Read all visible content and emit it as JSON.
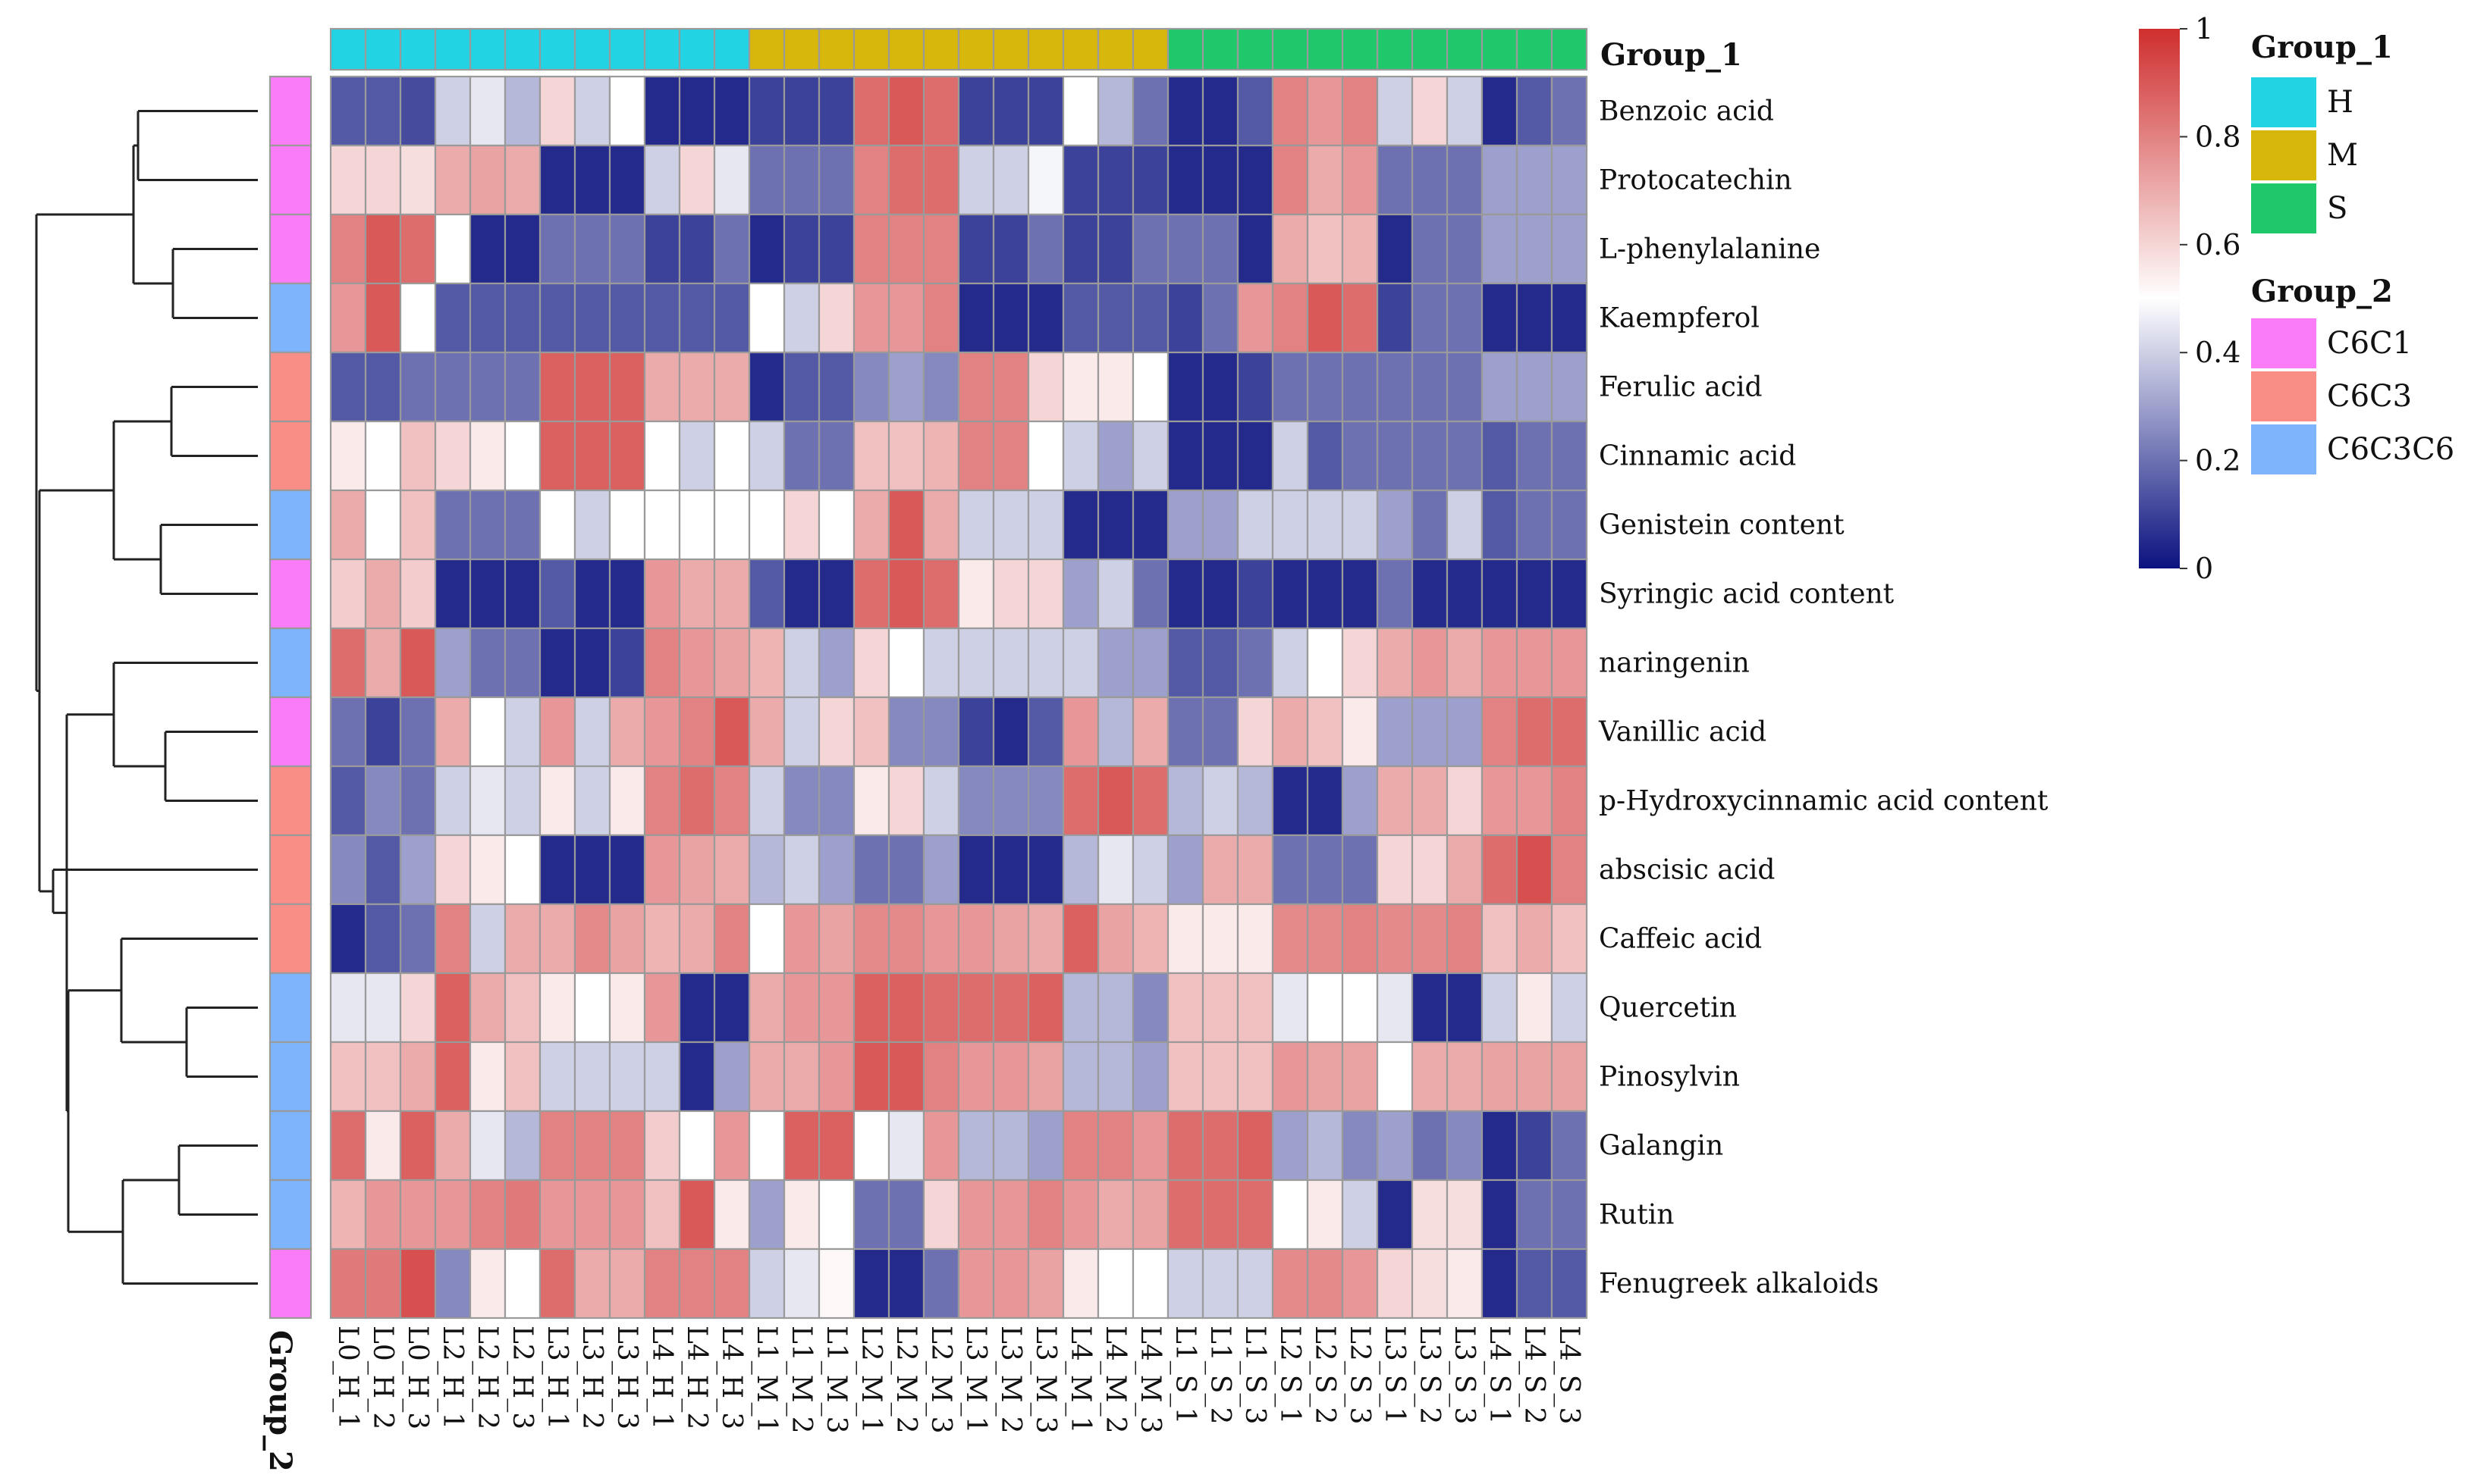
{
  "chart_data": {
    "type": "heatmap",
    "columns": [
      "L0_H_1",
      "L0_H_2",
      "L0_H_3",
      "L2_H_1",
      "L2_H_2",
      "L2_H_3",
      "L3_H_1",
      "L3_H_2",
      "L3_H_3",
      "L4_H_1",
      "L4_H_2",
      "L4_H_3",
      "L1_M_1",
      "L1_M_2",
      "L1_M_3",
      "L2_M_1",
      "L2_M_2",
      "L2_M_3",
      "L3_M_1",
      "L3_M_2",
      "L3_M_3",
      "L4_M_1",
      "L4_M_2",
      "L4_M_3",
      "L1_S_1",
      "L1_S_2",
      "L1_S_3",
      "L2_S_1",
      "L2_S_2",
      "L2_S_3",
      "L3_S_1",
      "L3_S_2",
      "L3_S_3",
      "L4_S_1",
      "L4_S_2",
      "L4_S_3"
    ],
    "rows": [
      "Benzoic acid",
      "Protocatechin",
      "L-phenylalanine",
      "Kaempferol",
      "Ferulic acid",
      "Cinnamic acid",
      "Genistein content",
      "Syringic acid content",
      "naringenin",
      "Vanillic acid",
      "p-Hydroxycinnamic acid content",
      "abscisic acid",
      "Caffeic acid",
      "Quercetin",
      "Pinosylvin",
      "Galangin",
      "Rutin",
      "Fenugreek alkaloids"
    ],
    "column_group_1": [
      "H",
      "H",
      "H",
      "H",
      "H",
      "H",
      "H",
      "H",
      "H",
      "H",
      "H",
      "H",
      "M",
      "M",
      "M",
      "M",
      "M",
      "M",
      "M",
      "M",
      "M",
      "M",
      "M",
      "M",
      "S",
      "S",
      "S",
      "S",
      "S",
      "S",
      "S",
      "S",
      "S",
      "S",
      "S",
      "S"
    ],
    "row_group_2": [
      "C6C1",
      "C6C1",
      "C6C1",
      "C6C3C6",
      "C6C3",
      "C6C3",
      "C6C3C6",
      "C6C1",
      "C6C3C6",
      "C6C1",
      "C6C3",
      "C6C3",
      "C6C3",
      "C6C3C6",
      "C6C3C6",
      "C6C3C6",
      "C6C3C6",
      "C6C1"
    ],
    "values": [
      [
        0.15,
        0.15,
        0.12,
        0.4,
        0.45,
        0.35,
        0.6,
        0.4,
        0.5,
        0.05,
        0.05,
        0.05,
        0.1,
        0.1,
        0.1,
        0.85,
        0.9,
        0.85,
        0.1,
        0.1,
        0.1,
        0.5,
        0.35,
        0.2,
        0.05,
        0.05,
        0.15,
        0.8,
        0.75,
        0.8,
        0.4,
        0.6,
        0.4,
        0.05,
        0.15,
        0.2
      ],
      [
        0.6,
        0.6,
        0.58,
        0.7,
        0.72,
        0.7,
        0.05,
        0.05,
        0.05,
        0.4,
        0.6,
        0.45,
        0.2,
        0.2,
        0.2,
        0.8,
        0.85,
        0.85,
        0.4,
        0.4,
        0.48,
        0.1,
        0.1,
        0.1,
        0.05,
        0.05,
        0.05,
        0.8,
        0.7,
        0.75,
        0.2,
        0.2,
        0.2,
        0.3,
        0.3,
        0.3
      ],
      [
        0.8,
        0.9,
        0.85,
        0.5,
        0.05,
        0.05,
        0.2,
        0.2,
        0.2,
        0.1,
        0.1,
        0.2,
        0.05,
        0.1,
        0.1,
        0.8,
        0.8,
        0.8,
        0.1,
        0.1,
        0.2,
        0.1,
        0.1,
        0.2,
        0.2,
        0.2,
        0.05,
        0.7,
        0.65,
        0.68,
        0.05,
        0.2,
        0.2,
        0.3,
        0.3,
        0.3
      ],
      [
        0.75,
        0.9,
        0.5,
        0.15,
        0.15,
        0.15,
        0.15,
        0.15,
        0.15,
        0.15,
        0.15,
        0.15,
        0.5,
        0.4,
        0.6,
        0.75,
        0.75,
        0.8,
        0.05,
        0.05,
        0.05,
        0.15,
        0.15,
        0.15,
        0.1,
        0.2,
        0.75,
        0.8,
        0.9,
        0.85,
        0.1,
        0.2,
        0.2,
        0.05,
        0.05,
        0.05
      ],
      [
        0.15,
        0.15,
        0.2,
        0.2,
        0.2,
        0.2,
        0.88,
        0.88,
        0.88,
        0.7,
        0.7,
        0.7,
        0.05,
        0.15,
        0.15,
        0.25,
        0.3,
        0.25,
        0.8,
        0.8,
        0.6,
        0.55,
        0.55,
        0.5,
        0.05,
        0.05,
        0.1,
        0.2,
        0.2,
        0.2,
        0.2,
        0.2,
        0.2,
        0.3,
        0.3,
        0.3
      ],
      [
        0.55,
        0.5,
        0.65,
        0.6,
        0.55,
        0.5,
        0.88,
        0.88,
        0.88,
        0.5,
        0.4,
        0.5,
        0.4,
        0.2,
        0.2,
        0.65,
        0.65,
        0.68,
        0.8,
        0.8,
        0.5,
        0.4,
        0.3,
        0.4,
        0.05,
        0.05,
        0.05,
        0.4,
        0.15,
        0.2,
        0.2,
        0.2,
        0.2,
        0.15,
        0.2,
        0.2
      ],
      [
        0.7,
        0.5,
        0.65,
        0.2,
        0.2,
        0.2,
        0.5,
        0.4,
        0.5,
        0.5,
        0.5,
        0.5,
        0.5,
        0.6,
        0.5,
        0.7,
        0.9,
        0.7,
        0.4,
        0.4,
        0.4,
        0.05,
        0.05,
        0.05,
        0.3,
        0.3,
        0.4,
        0.4,
        0.4,
        0.4,
        0.3,
        0.2,
        0.4,
        0.15,
        0.2,
        0.2
      ],
      [
        0.62,
        0.7,
        0.62,
        0.05,
        0.05,
        0.05,
        0.15,
        0.05,
        0.05,
        0.75,
        0.7,
        0.7,
        0.15,
        0.05,
        0.05,
        0.85,
        0.9,
        0.85,
        0.55,
        0.6,
        0.6,
        0.3,
        0.4,
        0.2,
        0.05,
        0.05,
        0.1,
        0.05,
        0.05,
        0.05,
        0.2,
        0.05,
        0.05,
        0.05,
        0.05,
        0.05
      ],
      [
        0.85,
        0.7,
        0.9,
        0.3,
        0.2,
        0.2,
        0.05,
        0.05,
        0.1,
        0.8,
        0.75,
        0.72,
        0.68,
        0.4,
        0.3,
        0.6,
        0.5,
        0.4,
        0.4,
        0.4,
        0.4,
        0.4,
        0.3,
        0.3,
        0.15,
        0.15,
        0.2,
        0.4,
        0.5,
        0.6,
        0.7,
        0.75,
        0.7,
        0.75,
        0.75,
        0.75
      ],
      [
        0.2,
        0.1,
        0.2,
        0.7,
        0.5,
        0.4,
        0.75,
        0.4,
        0.7,
        0.75,
        0.8,
        0.9,
        0.7,
        0.4,
        0.6,
        0.65,
        0.25,
        0.25,
        0.1,
        0.05,
        0.15,
        0.75,
        0.35,
        0.7,
        0.2,
        0.2,
        0.6,
        0.7,
        0.65,
        0.55,
        0.3,
        0.3,
        0.3,
        0.8,
        0.85,
        0.85
      ],
      [
        0.15,
        0.25,
        0.2,
        0.4,
        0.45,
        0.4,
        0.55,
        0.4,
        0.55,
        0.8,
        0.85,
        0.8,
        0.4,
        0.25,
        0.25,
        0.55,
        0.6,
        0.4,
        0.25,
        0.25,
        0.25,
        0.85,
        0.9,
        0.85,
        0.35,
        0.4,
        0.35,
        0.05,
        0.05,
        0.3,
        0.7,
        0.7,
        0.6,
        0.75,
        0.75,
        0.8
      ],
      [
        0.25,
        0.15,
        0.3,
        0.6,
        0.55,
        0.5,
        0.05,
        0.05,
        0.05,
        0.75,
        0.72,
        0.7,
        0.35,
        0.4,
        0.3,
        0.2,
        0.2,
        0.3,
        0.05,
        0.05,
        0.05,
        0.35,
        0.45,
        0.4,
        0.3,
        0.7,
        0.7,
        0.2,
        0.2,
        0.2,
        0.6,
        0.6,
        0.7,
        0.85,
        0.92,
        0.8
      ],
      [
        0.05,
        0.15,
        0.2,
        0.8,
        0.4,
        0.7,
        0.7,
        0.78,
        0.72,
        0.68,
        0.7,
        0.8,
        0.5,
        0.75,
        0.72,
        0.78,
        0.78,
        0.75,
        0.75,
        0.72,
        0.7,
        0.88,
        0.72,
        0.68,
        0.55,
        0.55,
        0.55,
        0.78,
        0.78,
        0.8,
        0.78,
        0.78,
        0.8,
        0.65,
        0.7,
        0.65
      ],
      [
        0.45,
        0.45,
        0.6,
        0.88,
        0.7,
        0.65,
        0.55,
        0.5,
        0.55,
        0.75,
        0.05,
        0.05,
        0.7,
        0.75,
        0.75,
        0.88,
        0.88,
        0.85,
        0.85,
        0.85,
        0.88,
        0.35,
        0.35,
        0.25,
        0.65,
        0.65,
        0.65,
        0.45,
        0.5,
        0.5,
        0.45,
        0.05,
        0.05,
        0.4,
        0.55,
        0.4
      ],
      [
        0.65,
        0.65,
        0.7,
        0.88,
        0.55,
        0.65,
        0.4,
        0.4,
        0.4,
        0.4,
        0.05,
        0.3,
        0.7,
        0.7,
        0.75,
        0.9,
        0.9,
        0.8,
        0.75,
        0.75,
        0.72,
        0.35,
        0.35,
        0.3,
        0.65,
        0.65,
        0.65,
        0.75,
        0.72,
        0.72,
        0.5,
        0.7,
        0.7,
        0.72,
        0.72,
        0.72
      ],
      [
        0.85,
        0.55,
        0.88,
        0.7,
        0.45,
        0.35,
        0.8,
        0.8,
        0.8,
        0.62,
        0.5,
        0.75,
        0.5,
        0.88,
        0.88,
        0.5,
        0.45,
        0.75,
        0.35,
        0.35,
        0.3,
        0.8,
        0.8,
        0.75,
        0.85,
        0.85,
        0.88,
        0.3,
        0.35,
        0.25,
        0.3,
        0.2,
        0.25,
        0.05,
        0.1,
        0.2
      ],
      [
        0.68,
        0.75,
        0.75,
        0.75,
        0.8,
        0.82,
        0.75,
        0.75,
        0.75,
        0.65,
        0.9,
        0.55,
        0.3,
        0.55,
        0.5,
        0.2,
        0.2,
        0.6,
        0.75,
        0.75,
        0.8,
        0.75,
        0.7,
        0.72,
        0.85,
        0.85,
        0.85,
        0.5,
        0.55,
        0.4,
        0.05,
        0.58,
        0.58,
        0.05,
        0.2,
        0.2
      ],
      [
        0.82,
        0.82,
        0.92,
        0.25,
        0.55,
        0.5,
        0.85,
        0.7,
        0.7,
        0.8,
        0.8,
        0.8,
        0.4,
        0.45,
        0.52,
        0.05,
        0.05,
        0.2,
        0.75,
        0.75,
        0.72,
        0.55,
        0.5,
        0.5,
        0.4,
        0.4,
        0.4,
        0.78,
        0.78,
        0.75,
        0.6,
        0.58,
        0.55,
        0.05,
        0.15,
        0.15
      ]
    ],
    "group_1_title": "Group_1",
    "group_2_title": "Group_2",
    "group_1_colors": {
      "H": "#22d3e4",
      "M": "#d8b70c",
      "S": "#1ec86b"
    },
    "group_2_colors": {
      "C6C1": "#fb7cf9",
      "C6C3": "#f88e86",
      "C6C3C6": "#7eb4fb"
    },
    "color_scale": {
      "low": "#0b127f",
      "mid": "#ffffff",
      "high": "#cf2e2e",
      "min": 0,
      "max": 1,
      "ticks": [
        "0",
        "0.2",
        "0.4",
        "0.6",
        "0.8",
        "1"
      ]
    },
    "legend_group_1": [
      {
        "key": "H",
        "label": "H"
      },
      {
        "key": "M",
        "label": "M"
      },
      {
        "key": "S",
        "label": "S"
      }
    ],
    "legend_group_2": [
      {
        "key": "C6C1",
        "label": "C6C1"
      },
      {
        "key": "C6C3",
        "label": "C6C3"
      },
      {
        "key": "C6C3C6",
        "label": "C6C3C6"
      }
    ],
    "row_dendrogram": "hierarchical clustering",
    "grid": true
  }
}
